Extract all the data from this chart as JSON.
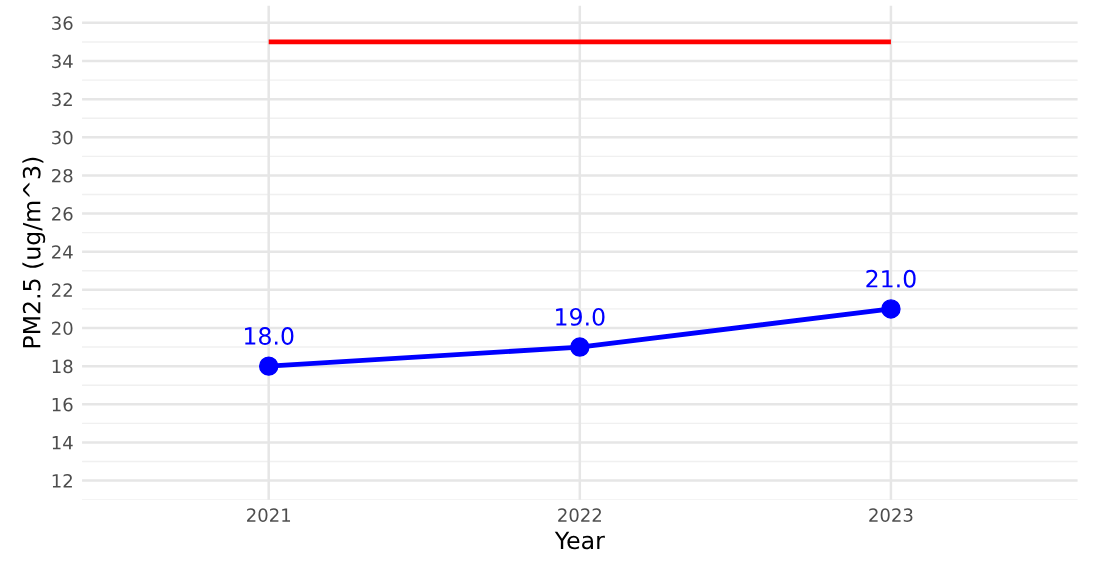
{
  "chart_data": {
    "type": "line",
    "xlabel": "Year",
    "ylabel": "PM2.5 (ug/m^3)",
    "categories": [
      "2021",
      "2022",
      "2023"
    ],
    "series": [
      {
        "color": "#0000ff",
        "values": [
          18,
          19,
          21
        ],
        "marker": "circle",
        "value_labels": [
          "18.0",
          "19.0",
          "21.0"
        ]
      },
      {
        "color": "#ff0000",
        "values": [
          35,
          35,
          35
        ],
        "marker": "none"
      }
    ],
    "ylim": [
      11,
      36.9
    ],
    "yticks": [
      12,
      14,
      16,
      18,
      20,
      22,
      24,
      26,
      28,
      30,
      32,
      34,
      36
    ],
    "grid": true,
    "line_style": "solid"
  }
}
